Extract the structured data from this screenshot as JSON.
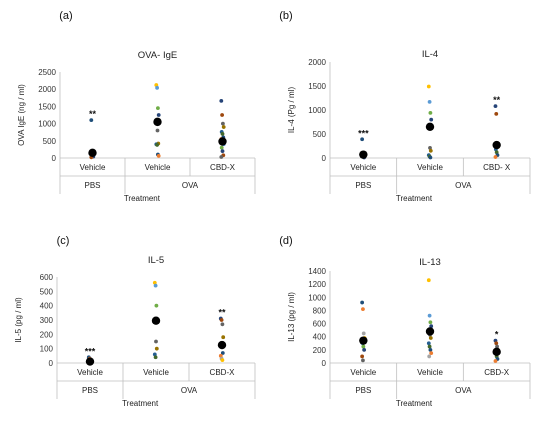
{
  "chart_data": [
    {
      "type": "scatter",
      "panel_label": "(a)",
      "title": "OVA- IgE",
      "ylabel": "OVA IgE (ng / ml)",
      "xlabel": "",
      "ylim": [
        0,
        2500
      ],
      "yticks": [
        0,
        500,
        1000,
        1500,
        2000,
        2500
      ],
      "categories": [
        "Vehicle",
        "Vehicle",
        "CBD-X"
      ],
      "groups": [
        {
          "name": "PBS",
          "span": [
            0,
            0
          ]
        },
        {
          "name": "OVA",
          "span": [
            1,
            2
          ]
        }
      ],
      "group_axis_label": "Treatment",
      "means": [
        150,
        1050,
        480
      ],
      "significance": [
        "**",
        "",
        ""
      ],
      "points": [
        [
          1100,
          200,
          150,
          120,
          90,
          60,
          40,
          20
        ],
        [
          2120,
          2040,
          1450,
          1250,
          1050,
          800,
          420,
          400,
          380,
          100,
          60
        ],
        [
          1660,
          1250,
          1000,
          900,
          760,
          700,
          600,
          550,
          500,
          450,
          400,
          300,
          200,
          80,
          30
        ]
      ]
    },
    {
      "type": "scatter",
      "panel_label": "(b)",
      "title": "IL-4",
      "ylabel": "IL-4 (Pg / ml)",
      "xlabel": "",
      "ylim": [
        0,
        2000
      ],
      "yticks": [
        0,
        500,
        1000,
        1500,
        2000
      ],
      "categories": [
        "Vehicle",
        "Vehicle",
        "CBD- X"
      ],
      "groups": [
        {
          "name": "PBS",
          "span": [
            0,
            0
          ]
        },
        {
          "name": "OVA",
          "span": [
            1,
            2
          ]
        }
      ],
      "group_axis_label": "Treatment",
      "means": [
        70,
        650,
        270
      ],
      "significance": [
        "***",
        "",
        "**"
      ],
      "points": [
        [
          390,
          100,
          80,
          60,
          40,
          20,
          10
        ],
        [
          1490,
          1170,
          940,
          800,
          650,
          210,
          150,
          60,
          30,
          10
        ],
        [
          1080,
          920,
          300,
          230,
          180,
          120,
          60,
          20
        ]
      ]
    },
    {
      "type": "scatter",
      "panel_label": "(c)",
      "title": "IL-5",
      "ylabel": "IL-5 (pg / ml)",
      "xlabel": "",
      "ylim": [
        0,
        600
      ],
      "yticks": [
        0,
        100,
        200,
        300,
        400,
        500,
        600
      ],
      "categories": [
        "Vehicle",
        "Vehicle",
        "CBD-X"
      ],
      "groups": [
        {
          "name": "PBS",
          "span": [
            0,
            0
          ]
        },
        {
          "name": "OVA",
          "span": [
            1,
            2
          ]
        }
      ],
      "group_axis_label": "Treatment",
      "means": [
        10,
        295,
        125
      ],
      "significance": [
        "***",
        "",
        "**"
      ],
      "points": [
        [
          40,
          30,
          20,
          10,
          5,
          0
        ],
        [
          560,
          540,
          400,
          300,
          290,
          150,
          100,
          60,
          40
        ],
        [
          310,
          300,
          270,
          180,
          130,
          110,
          70,
          50,
          30,
          20
        ]
      ]
    },
    {
      "type": "scatter",
      "panel_label": "(d)",
      "title": "IL-13",
      "ylabel": "IL-13 (pg / ml)",
      "xlabel": "",
      "ylim": [
        0,
        1400
      ],
      "yticks": [
        0,
        200,
        400,
        600,
        800,
        1000,
        1200,
        1400
      ],
      "categories": [
        "Vehicle",
        "Vehicle",
        "CBD-X"
      ],
      "groups": [
        {
          "name": "PBS",
          "span": [
            0,
            0
          ]
        },
        {
          "name": "OVA",
          "span": [
            1,
            2
          ]
        }
      ],
      "group_axis_label": "Treatment",
      "means": [
        340,
        480,
        170
      ],
      "significance": [
        "",
        "",
        "*"
      ],
      "points": [
        [
          920,
          820,
          450,
          380,
          300,
          250,
          200,
          100,
          40
        ],
        [
          1260,
          720,
          620,
          560,
          500,
          430,
          380,
          300,
          250,
          200,
          150,
          100
        ],
        [
          340,
          300,
          250,
          200,
          150,
          100,
          60,
          30
        ]
      ]
    }
  ],
  "colors": {
    "palette": [
      "#1f4e79",
      "#ed7d31",
      "#a5a5a5",
      "#ffc000",
      "#5b9bd5",
      "#70ad47",
      "#264478",
      "#9e480e",
      "#636363",
      "#997300",
      "#255e91",
      "#43682b"
    ],
    "mean": "#000000",
    "axis": "#bfbfbf"
  }
}
